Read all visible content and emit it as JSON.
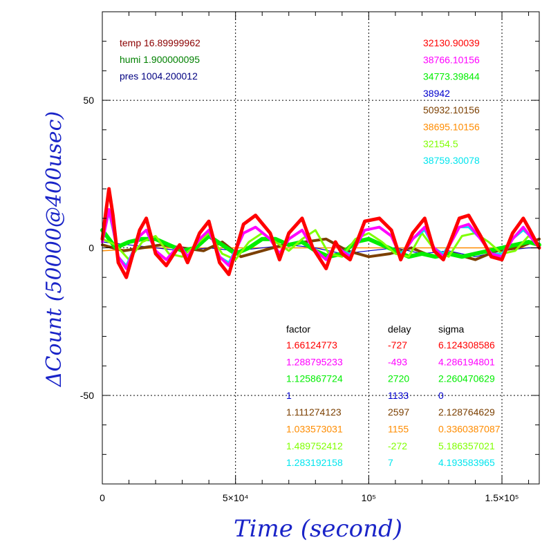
{
  "chart_data": {
    "type": "line",
    "title": "",
    "xlabel": "Time (second)",
    "ylabel": "ΔCount (50000@400usec)",
    "xlim": [
      0,
      164000
    ],
    "ylim": [
      -80,
      80
    ],
    "grid": true,
    "x_ticks": [
      {
        "value": 0,
        "label": "0"
      },
      {
        "value": 50000,
        "label": "5×10⁴"
      },
      {
        "value": 100000,
        "label": "10⁵"
      },
      {
        "value": 150000,
        "label": "1.5×10⁵"
      }
    ],
    "y_ticks": [
      {
        "value": 50,
        "label": "50"
      },
      {
        "value": 0,
        "label": "0"
      },
      {
        "value": -50,
        "label": "-50"
      }
    ],
    "env": [
      {
        "label": "temp 16.89999962",
        "color": "#8b0000"
      },
      {
        "label": "humi 1.900000095",
        "color": "#008000"
      },
      {
        "label": "pres 1004.200012",
        "color": "#000080"
      }
    ],
    "table_headers": [
      "factor",
      "delay",
      "sigma"
    ],
    "series": [
      {
        "name": "32130.90039",
        "color": "#ff0000",
        "factor": "1.66124773",
        "delay": "-727",
        "sigma": "6.124308586",
        "x": [
          0,
          2500,
          4000,
          6000,
          9000,
          14000,
          16500,
          20000,
          24000,
          29000,
          32000,
          36500,
          40000,
          44000,
          47500,
          53000,
          57500,
          63000,
          66500,
          70000,
          75000,
          79000,
          84000,
          87500,
          90000,
          93000,
          98500,
          104000,
          108500,
          112000,
          116500,
          121000,
          124500,
          128000,
          134000,
          137500,
          142000,
          146000,
          150000,
          154000,
          158000,
          160500,
          164000
        ],
        "y": [
          3,
          20,
          11,
          -5,
          -10,
          6,
          10,
          -2,
          -6,
          1,
          -5,
          5,
          9,
          -5,
          -9,
          8,
          11,
          5,
          -4,
          5,
          10,
          0,
          -7,
          2,
          -2,
          -4,
          9,
          10,
          6,
          -4,
          5,
          10,
          -1,
          -4,
          10,
          11,
          4,
          -3,
          -4,
          5,
          10,
          6,
          0
        ]
      },
      {
        "name": "38766.10156",
        "color": "#ff00ff",
        "factor": "1.288795233",
        "delay": "-493",
        "sigma": "4.286194801",
        "x": [
          0,
          2500,
          4000,
          6000,
          9000,
          14000,
          16500,
          20000,
          24000,
          29000,
          32000,
          36500,
          40000,
          44000,
          47500,
          53000,
          57500,
          63000,
          66500,
          70000,
          75000,
          79000,
          84000,
          87500,
          90000,
          93000,
          98500,
          104000,
          108500,
          112000,
          116500,
          121000,
          124500,
          128000,
          134000,
          137500,
          142000,
          146000,
          150000,
          154000,
          158000,
          160500,
          164000
        ],
        "y": [
          2,
          13,
          7,
          -3,
          -7,
          4,
          6,
          -1,
          -4,
          1,
          -3,
          3,
          6,
          -3,
          -6,
          5,
          7,
          3,
          -2,
          3,
          6,
          0,
          -4,
          1,
          -1,
          -3,
          6,
          7,
          4,
          -3,
          3,
          7,
          0,
          -3,
          7,
          8,
          3,
          -2,
          -3,
          3,
          7,
          4,
          0
        ]
      },
      {
        "name": "34773.39844",
        "color": "#00ee00",
        "factor": "1.125867724",
        "delay": "2720",
        "sigma": "2.260470629",
        "x": [
          0,
          5000,
          10000,
          15000,
          20000,
          25000,
          30000,
          35000,
          40000,
          45000,
          50000,
          55000,
          60000,
          65000,
          70000,
          75000,
          80000,
          85000,
          90000,
          95000,
          100000,
          105000,
          110000,
          115000,
          120000,
          125000,
          130000,
          135000,
          140000,
          145000,
          150000,
          155000,
          160000,
          164000
        ],
        "y": [
          6,
          0,
          2,
          3,
          3,
          1,
          -1,
          0,
          4,
          1,
          -2,
          0,
          3,
          3,
          1,
          2,
          -1,
          -3,
          -2,
          2,
          3,
          1,
          -1,
          -3,
          -2,
          -3,
          -2,
          -3,
          -2,
          -1,
          0,
          1,
          2,
          1
        ]
      },
      {
        "name": "38942",
        "color": "#0000cd",
        "factor": "1",
        "delay": "1133",
        "sigma": "0",
        "x": [
          0,
          10000,
          20000,
          30000,
          40000,
          50000,
          60000,
          70000,
          80000,
          90000,
          100000,
          110000,
          120000,
          130000,
          140000,
          150000,
          160000,
          164000
        ],
        "y": [
          2,
          1,
          0,
          -1,
          0,
          -1,
          0,
          1,
          0,
          -2,
          -1,
          0,
          -2,
          -1,
          -3,
          -1,
          0,
          0
        ]
      },
      {
        "name": "50932.10156",
        "color": "#7b3f00",
        "factor": "1.111274123",
        "delay": "2597",
        "sigma": "2.128764629",
        "x": [
          0,
          8000,
          15000,
          22000,
          30000,
          38000,
          45000,
          52000,
          60000,
          68000,
          76000,
          84000,
          92000,
          100000,
          108000,
          116000,
          124000,
          132000,
          140000,
          148000,
          156000,
          164000
        ],
        "y": [
          1,
          -1,
          0,
          1,
          0,
          -1,
          2,
          -3,
          -1,
          1,
          2,
          3,
          -1,
          -3,
          -2,
          0,
          -3,
          -2,
          -4,
          -1,
          0,
          3
        ]
      },
      {
        "name": "38695.10156",
        "color": "#ff8c00",
        "factor": "1.033573031",
        "delay": "1155",
        "sigma": "0.3360387087",
        "x": [
          0,
          20000,
          40000,
          60000,
          80000,
          100000,
          120000,
          140000,
          164000
        ],
        "y": [
          -1,
          0,
          0,
          0,
          0,
          0,
          0,
          0,
          0
        ]
      },
      {
        "name": "32154.5",
        "color": "#7fff00",
        "factor": "1.489752412",
        "delay": "-272",
        "sigma": "5.186357021",
        "x": [
          0,
          5000,
          10000,
          15000,
          20000,
          25000,
          30000,
          35000,
          40000,
          45000,
          50000,
          55000,
          60000,
          65000,
          70000,
          75000,
          80000,
          85000,
          90000,
          95000,
          100000,
          105000,
          110000,
          115000,
          120000,
          125000,
          130000,
          135000,
          140000,
          145000,
          150000,
          155000,
          160000,
          164000
        ],
        "y": [
          3,
          1,
          -4,
          2,
          4,
          -2,
          -3,
          1,
          5,
          -2,
          -4,
          2,
          5,
          2,
          -1,
          3,
          6,
          -2,
          -3,
          3,
          5,
          2,
          -2,
          -3,
          5,
          -1,
          -3,
          4,
          5,
          2,
          -2,
          -1,
          4,
          1
        ]
      },
      {
        "name": "38759.30078",
        "color": "#00e5ee",
        "factor": "1.283192158",
        "delay": "7",
        "sigma": "4.193583965",
        "x": [
          0,
          2500,
          4000,
          6000,
          9000,
          14000,
          16500,
          20000,
          24000,
          29000,
          32000,
          36500,
          40000,
          44000,
          47500,
          53000,
          57500,
          63000,
          66500,
          70000,
          75000,
          79000,
          84000,
          87500,
          90000,
          93000,
          98500,
          104000,
          108500,
          112000,
          116500,
          121000,
          124500,
          128000,
          134000,
          137500,
          142000,
          146000,
          150000,
          154000,
          158000,
          160500,
          164000
        ],
        "y": [
          2,
          12,
          6,
          -3,
          -6,
          4,
          6,
          -1,
          -4,
          1,
          -3,
          3,
          6,
          -3,
          -5,
          5,
          7,
          3,
          -2,
          3,
          6,
          0,
          -4,
          1,
          -1,
          -2,
          6,
          7,
          4,
          -2,
          3,
          6,
          0,
          -2,
          7,
          7,
          3,
          -2,
          -2,
          3,
          6,
          4,
          0
        ]
      }
    ]
  }
}
